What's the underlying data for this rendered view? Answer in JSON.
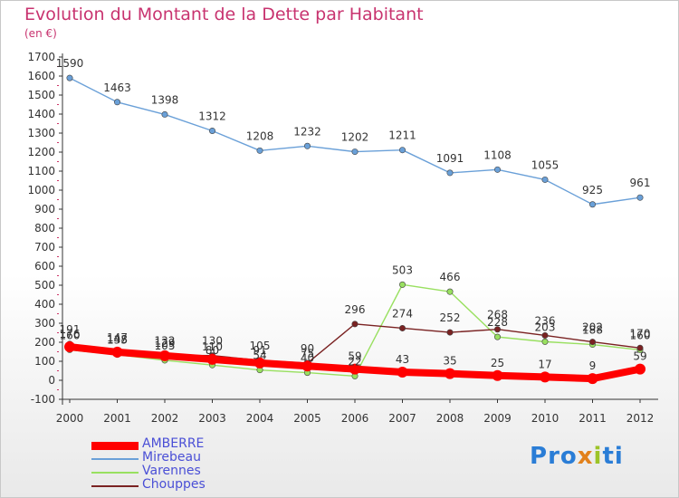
{
  "title": "Evolution du Montant de la Dette par Habitant",
  "unit": "(en €)",
  "brand": {
    "text": "Proxiti",
    "letter_colors": [
      "#2a7dd6",
      "#2a7dd6",
      "#2a7dd6",
      "#e2811c",
      "#9cc428",
      "#2a7dd6",
      "#2a7dd6"
    ]
  },
  "chart_data": {
    "type": "line",
    "title": "Evolution du Montant de la Dette par Habitant",
    "ylabel": "(en €)",
    "x": [
      "2000",
      "2001",
      "2002",
      "2003",
      "2004",
      "2005",
      "2006",
      "2007",
      "2008",
      "2009",
      "2010",
      "2011",
      "2012"
    ],
    "ylim": [
      -100,
      1700
    ],
    "yticks": [
      -100,
      0,
      100,
      200,
      300,
      400,
      500,
      600,
      700,
      800,
      900,
      1000,
      1100,
      1200,
      1300,
      1400,
      1500,
      1600,
      1700
    ],
    "grid": false,
    "legend_position": "bottom-left",
    "series": [
      {
        "name": "AMBERRE",
        "color": "#ff0000",
        "values": [
          176,
          148,
          129,
          110,
          91,
          75,
          59,
          43,
          35,
          25,
          17,
          9,
          59
        ]
      },
      {
        "name": "Mirebeau",
        "color": "#6aa0d8",
        "values": [
          1590,
          1463,
          1398,
          1312,
          1208,
          1232,
          1202,
          1211,
          1091,
          1108,
          1055,
          925,
          961
        ]
      },
      {
        "name": "Varennes",
        "color": "#99e060",
        "values": [
          160,
          135,
          105,
          80,
          54,
          40,
          22,
          503,
          466,
          228,
          203,
          188,
          160
        ]
      },
      {
        "name": "Chouppes",
        "color": "#7a2222",
        "values": [
          191,
          147,
          132,
          130,
          105,
          90,
          296,
          274,
          252,
          268,
          236,
          202,
          170
        ]
      }
    ]
  }
}
